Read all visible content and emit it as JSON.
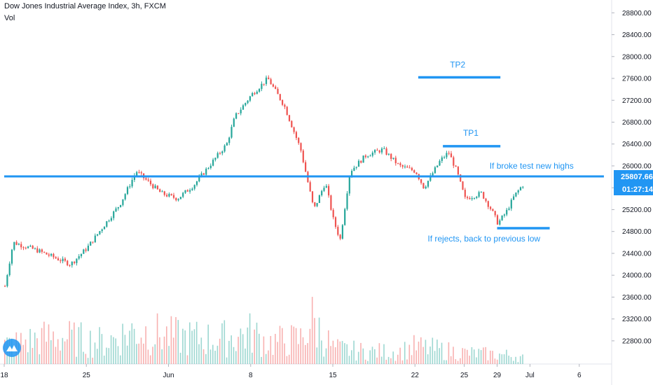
{
  "header": {
    "title": "Dow Jones Industrial Average Index, 3h, FXCM",
    "subtitle": "Vol"
  },
  "price_badge": {
    "price": "25807.66",
    "countdown": "01:27:14"
  },
  "colors": {
    "up": "#26a69a",
    "down": "#ef5350",
    "line": "#2196f3",
    "axis_text": "#131722"
  },
  "chart_data": {
    "type": "candlestick",
    "title": "Dow Jones Industrial Average Index, 3h, FXCM",
    "ylim": [
      22500,
      29000
    ],
    "y_ticks": [
      22800,
      23200,
      23600,
      24000,
      24400,
      24800,
      25200,
      25600,
      26000,
      26400,
      26800,
      27200,
      27600,
      28000,
      28400,
      28800
    ],
    "y_tick_labels": [
      "22800.00",
      "23200.00",
      "23600.00",
      "24000.00",
      "24400.00",
      "24800.00",
      "25200.00",
      "25600.00",
      "26000.00",
      "26400.00",
      "26800.00",
      "27200.00",
      "27600.00",
      "28000.00",
      "28400.00",
      "28800.00"
    ],
    "x_ticks": [
      {
        "label": "18",
        "session": 0
      },
      {
        "label": "25",
        "session": 5
      },
      {
        "label": "Jun",
        "session": 10
      },
      {
        "label": "8",
        "session": 15
      },
      {
        "label": "15",
        "session": 20
      },
      {
        "label": "22",
        "session": 25
      },
      {
        "label": "25",
        "session": 28
      },
      {
        "label": "29",
        "session": 30
      },
      {
        "label": "Jul",
        "session": 32
      },
      {
        "label": "6",
        "session": 35
      }
    ],
    "price_anchors": [
      [
        0,
        23800
      ],
      [
        0.5,
        24600
      ],
      [
        2,
        24450
      ],
      [
        4,
        24200
      ],
      [
        5,
        24500
      ],
      [
        7,
        25300
      ],
      [
        8,
        25900
      ],
      [
        9.5,
        25500
      ],
      [
        10.5,
        25400
      ],
      [
        11.5,
        25650
      ],
      [
        13.5,
        26400
      ],
      [
        14,
        26900
      ],
      [
        15,
        27300
      ],
      [
        16,
        27600
      ],
      [
        17,
        27100
      ],
      [
        18,
        26300
      ],
      [
        18.8,
        25200
      ],
      [
        19.5,
        25700
      ],
      [
        20,
        25000
      ],
      [
        20.4,
        24650
      ],
      [
        21,
        25900
      ],
      [
        22,
        26200
      ],
      [
        23,
        26300
      ],
      [
        24,
        26000
      ],
      [
        25,
        25900
      ],
      [
        25.5,
        25600
      ],
      [
        26.5,
        26100
      ],
      [
        27,
        26250
      ],
      [
        27.5,
        25900
      ],
      [
        28,
        25400
      ],
      [
        29,
        25500
      ],
      [
        29.6,
        25200
      ],
      [
        30,
        24950
      ],
      [
        30.5,
        25150
      ],
      [
        31,
        25450
      ],
      [
        31.5,
        25650
      ]
    ],
    "volume_profile": [
      [
        0,
        0.3
      ],
      [
        3,
        0.45
      ],
      [
        6,
        0.35
      ],
      [
        8,
        0.55
      ],
      [
        10,
        0.45
      ],
      [
        13,
        0.4
      ],
      [
        15,
        0.5
      ],
      [
        16,
        0.35
      ],
      [
        18,
        0.4
      ],
      [
        18.7,
        0.7
      ],
      [
        20,
        0.25
      ],
      [
        22,
        0.2
      ],
      [
        24,
        0.2
      ],
      [
        25,
        0.28
      ],
      [
        28,
        0.18
      ],
      [
        31,
        0.14
      ],
      [
        31.6,
        0.1
      ]
    ],
    "last_session": 31.6,
    "horizontal_lines": [
      {
        "label": "",
        "price": 25807.66,
        "from": 0,
        "to": 36.5
      },
      {
        "label": "TP2",
        "price": 27620,
        "from": 25.2,
        "to": 30.2
      },
      {
        "label": "TP1",
        "price": 26360,
        "from": 26.7,
        "to": 30.2
      },
      {
        "label": "",
        "price": 24860,
        "from": 30.0,
        "to": 33.2
      }
    ],
    "annotations": [
      {
        "text": "TP2",
        "session": 27.6,
        "price": 27800
      },
      {
        "text": "TP1",
        "session": 28.4,
        "price": 26550
      },
      {
        "text": "If broke test new highs",
        "session": 32.1,
        "price": 25950
      },
      {
        "text": "If rejects, back to previous low",
        "session": 29.2,
        "price": 24620
      }
    ]
  }
}
